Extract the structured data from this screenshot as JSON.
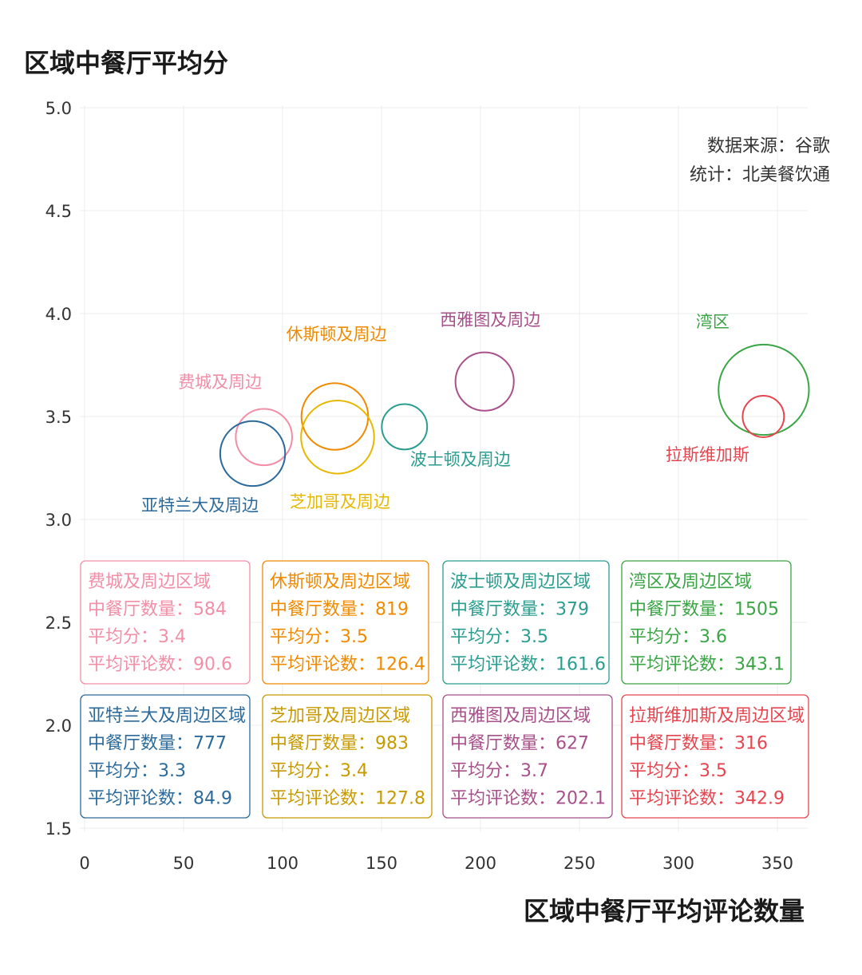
{
  "chart_data": {
    "type": "scatter",
    "title": "区域中餐厅平均分",
    "xlabel": "区域中餐厅平均评论数量",
    "ylabel": "",
    "xlim": [
      0,
      365
    ],
    "ylim": [
      1.5,
      5.0
    ],
    "xticks": [
      "0",
      "50",
      "100",
      "150",
      "200",
      "250",
      "300",
      "350"
    ],
    "yticks": [
      "1.5",
      "2.0",
      "2.5",
      "3.0",
      "3.5",
      "4.0",
      "4.5",
      "5.0"
    ],
    "grid": true,
    "source_note": [
      "数据来源：谷歌",
      "统计：北美餐饮通"
    ],
    "points": [
      {
        "label": "费城及周边",
        "x": 90.6,
        "y": 3.4,
        "size": 584,
        "color": "#f28ea6"
      },
      {
        "label": "休斯顿及周边",
        "x": 126.4,
        "y": 3.5,
        "size": 819,
        "color": "#f08a00"
      },
      {
        "label": "波士顿及周边",
        "x": 161.6,
        "y": 3.45,
        "size": 379,
        "color": "#2a9d8f"
      },
      {
        "label": "湾区",
        "x": 343.1,
        "y": 3.63,
        "size": 1505,
        "color": "#3aa544"
      },
      {
        "label": "亚特兰大及周边",
        "x": 84.9,
        "y": 3.32,
        "size": 777,
        "color": "#2b6a9a"
      },
      {
        "label": "芝加哥及周边",
        "x": 127.8,
        "y": 3.4,
        "size": 983,
        "color": "#e6b800"
      },
      {
        "label": "西雅图及周边",
        "x": 202.1,
        "y": 3.67,
        "size": 627,
        "color": "#a8508a"
      },
      {
        "label": "拉斯维加斯",
        "x": 342.9,
        "y": 3.5,
        "size": 316,
        "color": "#e6454f"
      }
    ],
    "info_boxes": [
      {
        "color": "#f28ea6",
        "lines": [
          "费城及周边区域",
          "中餐厅数量：584",
          "平均分：3.4",
          "平均评论数：90.6"
        ]
      },
      {
        "color": "#f08a00",
        "lines": [
          "休斯顿及周边区域",
          "中餐厅数量：819",
          "平均分：3.5",
          "平均评论数：126.4"
        ]
      },
      {
        "color": "#2a9d8f",
        "lines": [
          "波士顿及周边区域",
          "中餐厅数量：379",
          "平均分：3.5",
          "平均评论数：161.6"
        ]
      },
      {
        "color": "#3aa544",
        "lines": [
          "湾区及周边区域",
          "中餐厅数量：1505",
          "平均分：3.6",
          "平均评论数：343.1"
        ]
      },
      {
        "color": "#2b6a9a",
        "lines": [
          "亚特兰大及周边区域",
          "中餐厅数量：777",
          "平均分：3.3",
          "平均评论数：84.9"
        ]
      },
      {
        "color": "#c79a00",
        "lines": [
          "芝加哥及周边区域",
          "中餐厅数量：983",
          "平均分：3.4",
          "平均评论数：127.8"
        ]
      },
      {
        "color": "#a8508a",
        "lines": [
          "西雅图及周边区域",
          "中餐厅数量：627",
          "平均分：3.7",
          "平均评论数：202.1"
        ]
      },
      {
        "color": "#e6454f",
        "lines": [
          "拉斯维加斯及周边区域",
          "中餐厅数量：316",
          "平均分：3.5",
          "平均评论数：342.9"
        ]
      }
    ]
  }
}
